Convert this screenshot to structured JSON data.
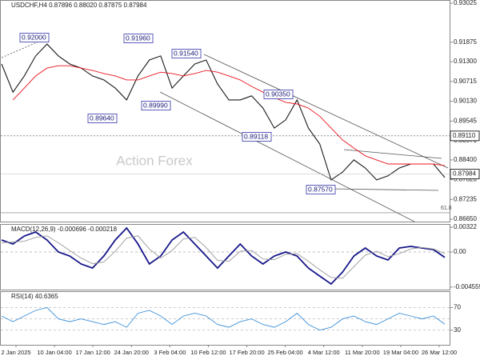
{
  "chart_data": [
    {
      "type": "line",
      "title": "USDCHF,H4 0.87896 0.88020 0.87875 0.87984",
      "watermark": "Action Forex",
      "x_labels": [
        "2 Jan 2025",
        "10 Jan 04:00",
        "17 Jan 12:00",
        "24 Jan 20:00",
        "3 Feb 04:00",
        "10 Feb 12:00",
        "17 Feb 20:00",
        "25 Feb 04:00",
        "4 Mar 12:00",
        "11 Mar 20:00",
        "19 Mar 04:00",
        "26 Mar 12:00"
      ],
      "ylim": [
        0.86579,
        0.9312
      ],
      "yticks": [
        0.93025,
        0.91875,
        {
          "value": 0.913,
          "label": "0.91300"
        },
        0.90715,
        {
          "value": 0.9013,
          "label": "0.90130"
        },
        0.89545,
        {
          "value": 0.8897,
          "label": "0.88970"
        },
        {
          "value": 0.884,
          "label": "0.88400"
        },
        {
          "value": 0.8782,
          "label": "0.87820"
        },
        0.87235,
        {
          "value": 0.8665,
          "label": "0.86650"
        }
      ],
      "last_price": 0.87984,
      "level": {
        "value": 0.8911,
        "label": "0.89110"
      },
      "fib": {
        "value": 0.8684,
        "label": "61.8"
      },
      "annotations": [
        "0.92000",
        "0.91960",
        "0.91540",
        "0.90350",
        "0.89640",
        "0.89990",
        "0.89118",
        "0.87570"
      ],
      "series": [
        {
          "name": "Price",
          "color": "#1a1a1a",
          "values": [
            0.9123,
            0.904,
            0.9088,
            0.9147,
            0.9182,
            0.9147,
            0.9123,
            0.9111,
            0.9088,
            0.9076,
            0.9052,
            0.9017,
            0.9088,
            0.9135,
            0.9147,
            0.9052,
            0.9088,
            0.9123,
            0.9135,
            0.9064,
            0.9017,
            0.9017,
            0.9029,
            0.8993,
            0.8934,
            0.8958,
            0.9017,
            0.8934,
            0.8887,
            0.8781,
            0.8804,
            0.884,
            0.8816,
            0.8781,
            0.8793,
            0.8816,
            0.8828,
            0.8828,
            0.8828,
            0.8788
          ]
        },
        {
          "name": "MA",
          "color": "#e8141e",
          "values": [
            null,
            0.9017,
            0.9052,
            0.9088,
            0.9111,
            0.9118,
            0.9118,
            0.9111,
            0.9104,
            0.9095,
            0.9088,
            0.9076,
            0.9076,
            0.9088,
            0.9099,
            0.9095,
            0.9088,
            0.9095,
            0.9104,
            0.9099,
            0.9088,
            0.9076,
            0.9057,
            0.904,
            0.9024,
            0.901,
            0.9005,
            0.8993,
            0.8969,
            0.8934,
            0.8899,
            0.8875,
            0.8852,
            0.884,
            0.8828,
            0.8828,
            0.8828,
            0.8828,
            0.8828,
            0.8823
          ]
        }
      ]
    },
    {
      "type": "line",
      "title": "MACD(12,26,9) -0.000696 -0.000218",
      "ylim": [
        -0.00488,
        0.00364
      ],
      "yticks": [
        0.00322,
        {
          "value": 0,
          "label": "0.00"
        },
        -0.004559
      ],
      "series": [
        {
          "name": "MACD",
          "color": "#16168a",
          "values": [
            0.00156,
            0.00104,
            0.00208,
            0.0026,
            0.00156,
            0,
            -0.00052,
            -0.00156,
            -0.00208,
            -0.00052,
            0.00156,
            0.00312,
            0.00104,
            -0.00156,
            -0.00052,
            0.00156,
            0.0026,
            0.00104,
            -0.00052,
            -0.00208,
            -0.00052,
            0.00104,
            -0.00052,
            -0.00156,
            -0.00052,
            0,
            -0.00052,
            -0.00208,
            -0.00312,
            -0.00415,
            -0.0026,
            -0.00052,
            0.00052,
            -0.00052,
            -0.00104,
            0.00052,
            0.00073,
            0.00052,
            0.00031,
            -0.0007
          ]
        },
        {
          "name": "Signal",
          "color": "#9a9a9a",
          "values": [
            0.0012,
            0.0013,
            0.0014,
            0.0019,
            0.0021,
            0.0012,
            0.0002,
            -0.0008,
            -0.0015,
            -0.0013,
            0.0001,
            0.0018,
            0.0021,
            0.0004,
            -0.0008,
            0.0002,
            0.0017,
            0.0019,
            0.0006,
            -0.0011,
            -0.0012,
            0.0001,
            0.0002,
            -0.0009,
            -0.001,
            -0.0003,
            -0.0002,
            -0.0012,
            -0.0023,
            -0.0033,
            -0.0034,
            -0.0019,
            -0.0004,
            0.0001,
            -0.0006,
            -0.0002,
            0.0004,
            0.0006,
            0.0004,
            -0.0002
          ]
        }
      ]
    },
    {
      "type": "line",
      "title": "RSI(14) 40.6365",
      "ylim": [
        4,
        99
      ],
      "yticks": [
        70,
        30
      ],
      "levels": [
        70,
        50,
        30
      ],
      "series": [
        {
          "name": "RSI",
          "color": "#3b8fd8",
          "values": [
            55,
            45,
            55,
            65,
            70,
            50,
            45,
            50,
            45,
            40,
            45,
            35,
            60,
            65,
            55,
            40,
            55,
            60,
            55,
            40,
            35,
            45,
            50,
            40,
            35,
            45,
            60,
            40,
            30,
            35,
            50,
            55,
            45,
            40,
            50,
            60,
            55,
            50,
            55,
            40.6
          ]
        }
      ]
    }
  ]
}
